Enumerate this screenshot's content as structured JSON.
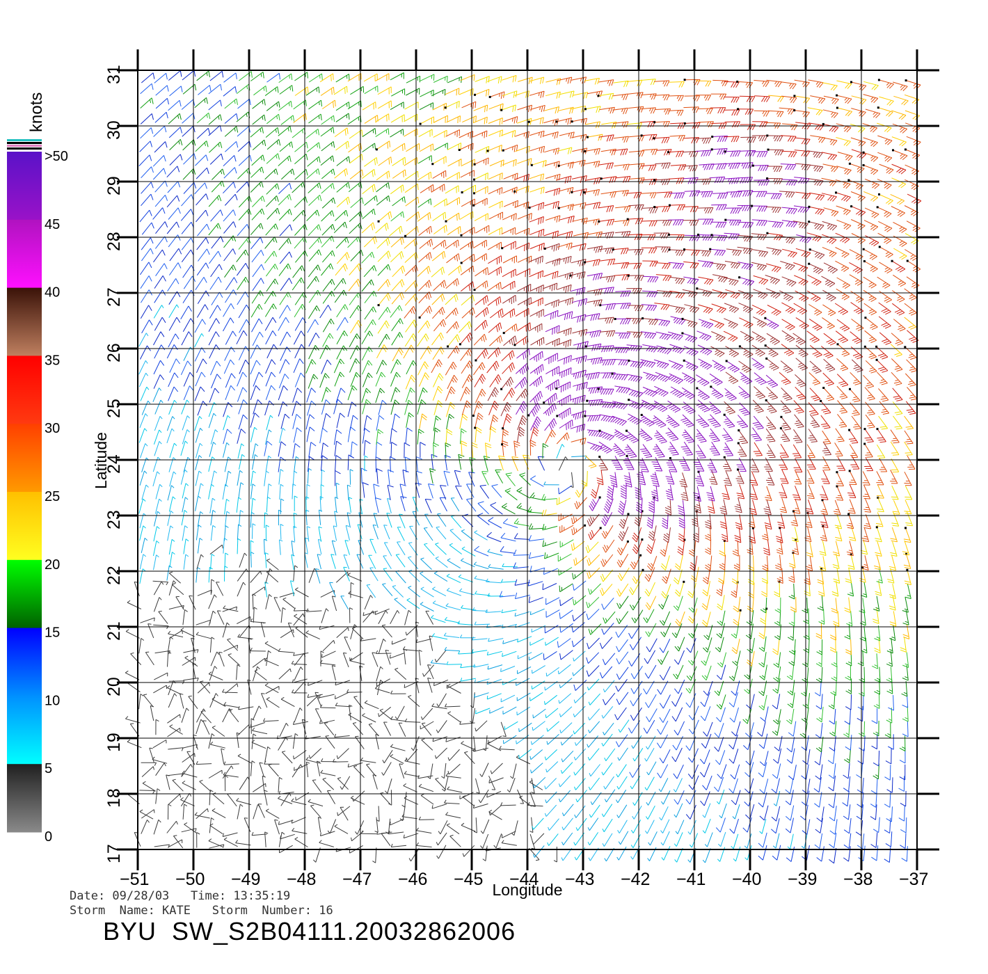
{
  "legend": {
    "unit": "knots",
    "labels": [
      ">50",
      "45",
      "40",
      "35",
      "30",
      "25",
      "20",
      "15",
      "10",
      "5",
      "0"
    ],
    "bands": [
      {
        "from": 50,
        "to": 45,
        "colors": [
          "#5a12c8",
          "#9a12c8"
        ]
      },
      {
        "from": 45,
        "to": 40,
        "colors": [
          "#b012c0",
          "#ff10ff"
        ]
      },
      {
        "from": 40,
        "to": 35,
        "colors": [
          "#3a1208",
          "#c08060"
        ]
      },
      {
        "from": 35,
        "to": 30,
        "colors": [
          "#ff0000",
          "#ff3a10"
        ]
      },
      {
        "from": 30,
        "to": 25,
        "colors": [
          "#ff4000",
          "#ff9a00"
        ]
      },
      {
        "from": 25,
        "to": 20,
        "colors": [
          "#ffc000",
          "#ffff20"
        ]
      },
      {
        "from": 20,
        "to": 15,
        "colors": [
          "#00ff00",
          "#006000"
        ]
      },
      {
        "from": 15,
        "to": 10,
        "colors": [
          "#0000ff",
          "#0090ff"
        ]
      },
      {
        "from": 10,
        "to": 5,
        "colors": [
          "#0090ff",
          "#00ffff"
        ]
      },
      {
        "from": 5,
        "to": 0,
        "colors": [
          "#202020",
          "#8a8a8a"
        ]
      }
    ]
  },
  "axes": {
    "xlabel": "Longitude",
    "ylabel": "Latitude",
    "xlim": [
      -51,
      -37
    ],
    "ylim": [
      17,
      31
    ],
    "xticks": [
      "−51",
      "−50",
      "−49",
      "−48",
      "−47",
      "−46",
      "−45",
      "−44",
      "−43",
      "−42",
      "−41",
      "−40",
      "−39",
      "−38",
      "−37"
    ],
    "yticks": [
      "17",
      "18",
      "19",
      "20",
      "21",
      "22",
      "23",
      "24",
      "25",
      "26",
      "27",
      "28",
      "29",
      "30",
      "31"
    ]
  },
  "info": {
    "date_line": "Date: 09/28/03   Time: 13:35:19",
    "storm_line": "Storm  Name: KATE   Storm  Number: 16",
    "title": "BYU  SW_S2B04111.20032862006"
  },
  "storm": {
    "center": [
      -43.2,
      24.0
    ],
    "max_wind_knots": 48
  }
}
